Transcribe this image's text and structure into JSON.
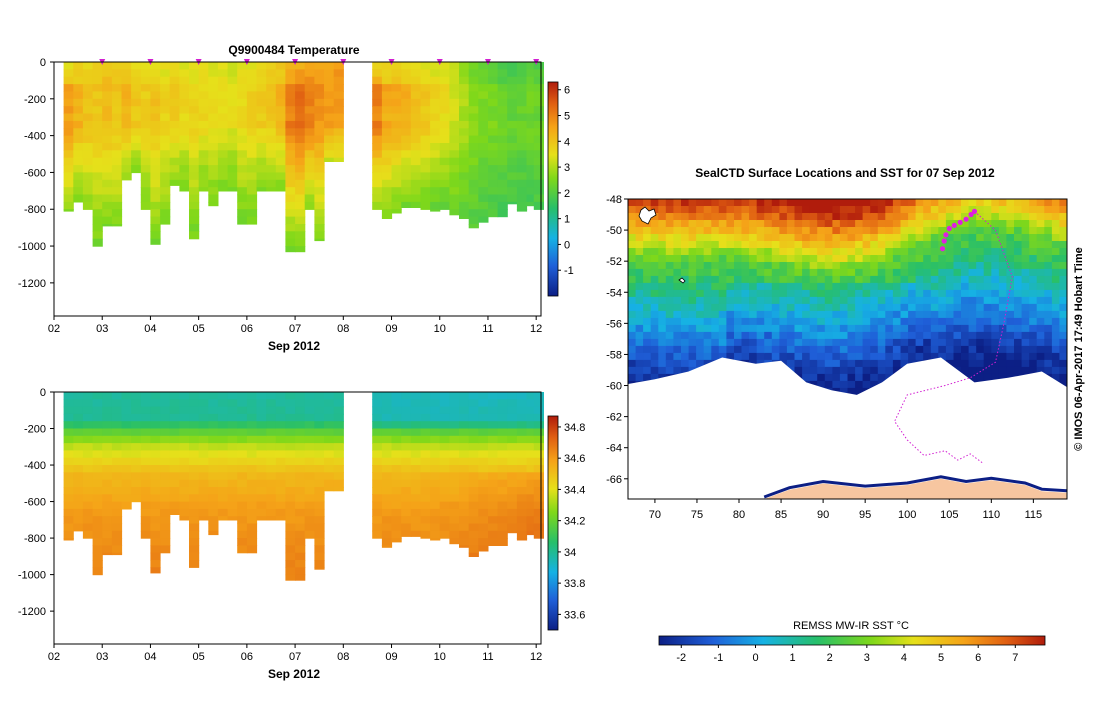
{
  "chart_data": [
    {
      "type": "heatmap",
      "title": "Q9900484  Temperature",
      "xlabel": "Sep 2012",
      "x_ticks": [
        "02",
        "03",
        "04",
        "05",
        "06",
        "07",
        "08",
        "09",
        "10",
        "11",
        "12"
      ],
      "y_ticks": [
        "0",
        "-200",
        "-400",
        "-600",
        "-800",
        "-1000",
        "-1200"
      ],
      "ylim": [
        -1380,
        0
      ],
      "xlim": [
        2.0,
        12.1
      ],
      "colorbar": {
        "ticks": [
          "-1",
          "0",
          "1",
          "2",
          "3",
          "4",
          "5",
          "6"
        ],
        "range": [
          -2,
          6.3
        ]
      },
      "profile_markers_day": [
        3.0,
        4.0,
        5.0,
        6.0,
        7.0,
        8.0,
        9.0,
        10.0,
        11.0,
        12.0
      ],
      "profiles": [
        {
          "day": 2.3,
          "depth": 810,
          "top": 3.5,
          "core": 4.8,
          "deep": 2.6
        },
        {
          "day": 2.5,
          "depth": 760,
          "top": 3.6,
          "core": 4.4,
          "deep": 2.5
        },
        {
          "day": 2.7,
          "depth": 800,
          "top": 3.7,
          "core": 4.1,
          "deep": 2.6
        },
        {
          "day": 2.9,
          "depth": 1000,
          "top": 3.8,
          "core": 4.0,
          "deep": 2.4
        },
        {
          "day": 3.1,
          "depth": 890,
          "top": 3.9,
          "core": 4.2,
          "deep": 2.5
        },
        {
          "day": 3.3,
          "depth": 890,
          "top": 3.8,
          "core": 4.0,
          "deep": 2.6
        },
        {
          "day": 3.5,
          "depth": 640,
          "top": 3.7,
          "core": 4.3,
          "deep": 2.7
        },
        {
          "day": 3.7,
          "depth": 600,
          "top": 3.6,
          "core": 4.0,
          "deep": 2.6
        },
        {
          "day": 3.9,
          "depth": 800,
          "top": 3.5,
          "core": 3.9,
          "deep": 2.5
        },
        {
          "day": 4.1,
          "depth": 990,
          "top": 3.4,
          "core": 4.1,
          "deep": 2.4
        },
        {
          "day": 4.3,
          "depth": 880,
          "top": 3.4,
          "core": 3.8,
          "deep": 2.5
        },
        {
          "day": 4.5,
          "depth": 670,
          "top": 3.5,
          "core": 3.9,
          "deep": 2.6
        },
        {
          "day": 4.7,
          "depth": 700,
          "top": 3.4,
          "core": 3.7,
          "deep": 2.5
        },
        {
          "day": 4.9,
          "depth": 960,
          "top": 3.3,
          "core": 3.8,
          "deep": 2.4
        },
        {
          "day": 5.1,
          "depth": 700,
          "top": 3.4,
          "core": 3.7,
          "deep": 2.5
        },
        {
          "day": 5.3,
          "depth": 780,
          "top": 3.3,
          "core": 3.6,
          "deep": 2.4
        },
        {
          "day": 5.5,
          "depth": 700,
          "top": 3.3,
          "core": 3.6,
          "deep": 2.5
        },
        {
          "day": 5.7,
          "depth": 700,
          "top": 3.2,
          "core": 3.5,
          "deep": 2.4
        },
        {
          "day": 5.9,
          "depth": 880,
          "top": 3.3,
          "core": 3.7,
          "deep": 2.4
        },
        {
          "day": 6.1,
          "depth": 880,
          "top": 3.4,
          "core": 3.8,
          "deep": 2.4
        },
        {
          "day": 6.3,
          "depth": 700,
          "top": 3.5,
          "core": 3.9,
          "deep": 2.5
        },
        {
          "day": 6.5,
          "depth": 700,
          "top": 3.7,
          "core": 4.0,
          "deep": 2.5
        },
        {
          "day": 6.7,
          "depth": 700,
          "top": 3.9,
          "core": 4.3,
          "deep": 2.5
        },
        {
          "day": 6.9,
          "depth": 1030,
          "top": 4.2,
          "core": 5.2,
          "deep": 2.3
        },
        {
          "day": 7.1,
          "depth": 1030,
          "top": 4.3,
          "core": 5.4,
          "deep": 2.4
        },
        {
          "day": 7.3,
          "depth": 800,
          "top": 4.5,
          "core": 5.1,
          "deep": 2.6
        },
        {
          "day": 7.5,
          "depth": 970,
          "top": 4.4,
          "core": 4.8,
          "deep": 2.5
        },
        {
          "day": 7.7,
          "depth": 540,
          "top": 4.6,
          "core": 4.7,
          "deep": 3.2
        },
        {
          "day": 7.9,
          "depth": 540,
          "top": 4.7,
          "core": 4.6,
          "deep": 3.3
        },
        {
          "day": 8.7,
          "depth": 800,
          "top": 3.6,
          "core": 5.2,
          "deep": 2.6
        },
        {
          "day": 8.9,
          "depth": 850,
          "top": 3.5,
          "core": 4.6,
          "deep": 2.5
        },
        {
          "day": 9.1,
          "depth": 820,
          "top": 3.6,
          "core": 4.5,
          "deep": 2.4
        },
        {
          "day": 9.3,
          "depth": 790,
          "top": 3.6,
          "core": 4.4,
          "deep": 2.3
        },
        {
          "day": 9.5,
          "depth": 790,
          "top": 3.5,
          "core": 4.2,
          "deep": 2.3
        },
        {
          "day": 9.7,
          "depth": 800,
          "top": 3.4,
          "core": 4.0,
          "deep": 2.3
        },
        {
          "day": 9.9,
          "depth": 810,
          "top": 3.3,
          "core": 3.8,
          "deep": 2.2
        },
        {
          "day": 10.1,
          "depth": 800,
          "top": 3.2,
          "core": 3.6,
          "deep": 2.2
        },
        {
          "day": 10.3,
          "depth": 830,
          "top": 3.0,
          "core": 3.3,
          "deep": 2.2
        },
        {
          "day": 10.5,
          "depth": 850,
          "top": 2.7,
          "core": 3.0,
          "deep": 2.1
        },
        {
          "day": 10.7,
          "depth": 900,
          "top": 2.3,
          "core": 2.7,
          "deep": 2.0
        },
        {
          "day": 10.9,
          "depth": 870,
          "top": 2.1,
          "core": 2.6,
          "deep": 1.9
        },
        {
          "day": 11.1,
          "depth": 840,
          "top": 1.9,
          "core": 2.5,
          "deep": 1.9
        },
        {
          "day": 11.3,
          "depth": 840,
          "top": 1.8,
          "core": 2.4,
          "deep": 1.8
        },
        {
          "day": 11.5,
          "depth": 770,
          "top": 1.8,
          "core": 2.3,
          "deep": 1.8
        },
        {
          "day": 11.7,
          "depth": 810,
          "top": 1.8,
          "core": 2.3,
          "deep": 1.8
        },
        {
          "day": 11.9,
          "depth": 780,
          "top": 1.9,
          "core": 2.4,
          "deep": 1.8
        },
        {
          "day": 12.05,
          "depth": 800,
          "top": 1.9,
          "core": 2.4,
          "deep": 1.8
        }
      ]
    },
    {
      "type": "heatmap",
      "title": "",
      "xlabel": "Sep 2012",
      "x_ticks": [
        "02",
        "03",
        "04",
        "05",
        "06",
        "07",
        "08",
        "09",
        "10",
        "11",
        "12"
      ],
      "y_ticks": [
        "0",
        "-200",
        "-400",
        "-600",
        "-800",
        "-1000",
        "-1200"
      ],
      "ylim": [
        -1380,
        0
      ],
      "xlim": [
        2.0,
        12.1
      ],
      "colorbar": {
        "ticks": [
          "33.6",
          "33.8",
          "34",
          "34.2",
          "34.4",
          "34.6",
          "34.8"
        ],
        "range": [
          33.5,
          34.87
        ]
      },
      "salinity_profile": [
        {
          "depth": 0,
          "value": 33.98
        },
        {
          "depth": 150,
          "value": 34.0
        },
        {
          "depth": 220,
          "value": 34.18
        },
        {
          "depth": 300,
          "value": 34.35
        },
        {
          "depth": 450,
          "value": 34.52
        },
        {
          "depth": 650,
          "value": 34.6
        },
        {
          "depth": 1000,
          "value": 34.66
        }
      ]
    },
    {
      "type": "heatmap",
      "title": "SealCTD Surface Locations and SST for 07 Sep 2012",
      "x_ticks": [
        "70",
        "75",
        "80",
        "85",
        "90",
        "95",
        "100",
        "105",
        "110",
        "115"
      ],
      "y_ticks": [
        "-48",
        "-50",
        "-52",
        "-54",
        "-56",
        "-58",
        "-60",
        "-62",
        "-64",
        "-66"
      ],
      "xlim": [
        66.8,
        119.0
      ],
      "ylim": [
        -67.3,
        -48.0
      ],
      "colorbar": {
        "label": "REMSS MW-IR SST °C",
        "ticks": [
          "-2",
          "-1",
          "0",
          "1",
          "2",
          "3",
          "4",
          "5",
          "6",
          "7"
        ],
        "range": [
          -2.6,
          7.8
        ]
      },
      "ice_edge_lat": [
        {
          "lon": 66.8,
          "lat": -59.9
        },
        {
          "lon": 70,
          "lat": -59.6
        },
        {
          "lon": 74,
          "lat": -59.1
        },
        {
          "lon": 78,
          "lat": -58.2
        },
        {
          "lon": 82,
          "lat": -58.6
        },
        {
          "lon": 85,
          "lat": -58.4
        },
        {
          "lon": 88,
          "lat": -59.8
        },
        {
          "lon": 91,
          "lat": -60.3
        },
        {
          "lon": 94,
          "lat": -60.6
        },
        {
          "lon": 97,
          "lat": -59.8
        },
        {
          "lon": 100,
          "lat": -58.6
        },
        {
          "lon": 104,
          "lat": -58.2
        },
        {
          "lon": 108,
          "lat": -59.8
        },
        {
          "lon": 112,
          "lat": -59.5
        },
        {
          "lon": 116,
          "lat": -59.1
        },
        {
          "lon": 119,
          "lat": -60.1
        }
      ],
      "coast_lat": [
        {
          "lon": 83,
          "lat": -67.3
        },
        {
          "lon": 86,
          "lat": -66.7
        },
        {
          "lon": 90,
          "lat": -66.3
        },
        {
          "lon": 95,
          "lat": -66.6
        },
        {
          "lon": 100,
          "lat": -66.4
        },
        {
          "lon": 104,
          "lat": -66.0
        },
        {
          "lon": 107,
          "lat": -66.3
        },
        {
          "lon": 110,
          "lat": -66.1
        },
        {
          "lon": 114,
          "lat": -66.4
        },
        {
          "lon": 116,
          "lat": -66.8
        },
        {
          "lon": 119,
          "lat": -66.9
        }
      ],
      "seal_surface_locations": [
        {
          "lon": 104.2,
          "lat": -51.2
        },
        {
          "lon": 104.4,
          "lat": -50.7
        },
        {
          "lon": 104.6,
          "lat": -50.3
        },
        {
          "lon": 105.0,
          "lat": -49.9
        },
        {
          "lon": 105.6,
          "lat": -49.7
        },
        {
          "lon": 106.3,
          "lat": -49.5
        },
        {
          "lon": 107.0,
          "lat": -49.3
        },
        {
          "lon": 107.6,
          "lat": -49.0
        },
        {
          "lon": 108.0,
          "lat": -48.8
        }
      ],
      "track_lonlat": [
        [
          108.0,
          -48.8
        ],
        [
          110.5,
          -50.0
        ],
        [
          112.5,
          -53.0
        ],
        [
          111.5,
          -56.0
        ],
        [
          110.5,
          -58.5
        ],
        [
          107.5,
          -59.5
        ],
        [
          104.5,
          -60.0
        ],
        [
          100.0,
          -60.6
        ],
        [
          98.5,
          -62.3
        ],
        [
          100.0,
          -63.5
        ],
        [
          102.0,
          -64.5
        ],
        [
          104.5,
          -64.2
        ],
        [
          106.0,
          -64.8
        ],
        [
          107.5,
          -64.4
        ],
        [
          109.0,
          -65.0
        ]
      ]
    }
  ],
  "map_side_label": "©  IMOS 06-Apr-2017 17:49 Hobart Time"
}
